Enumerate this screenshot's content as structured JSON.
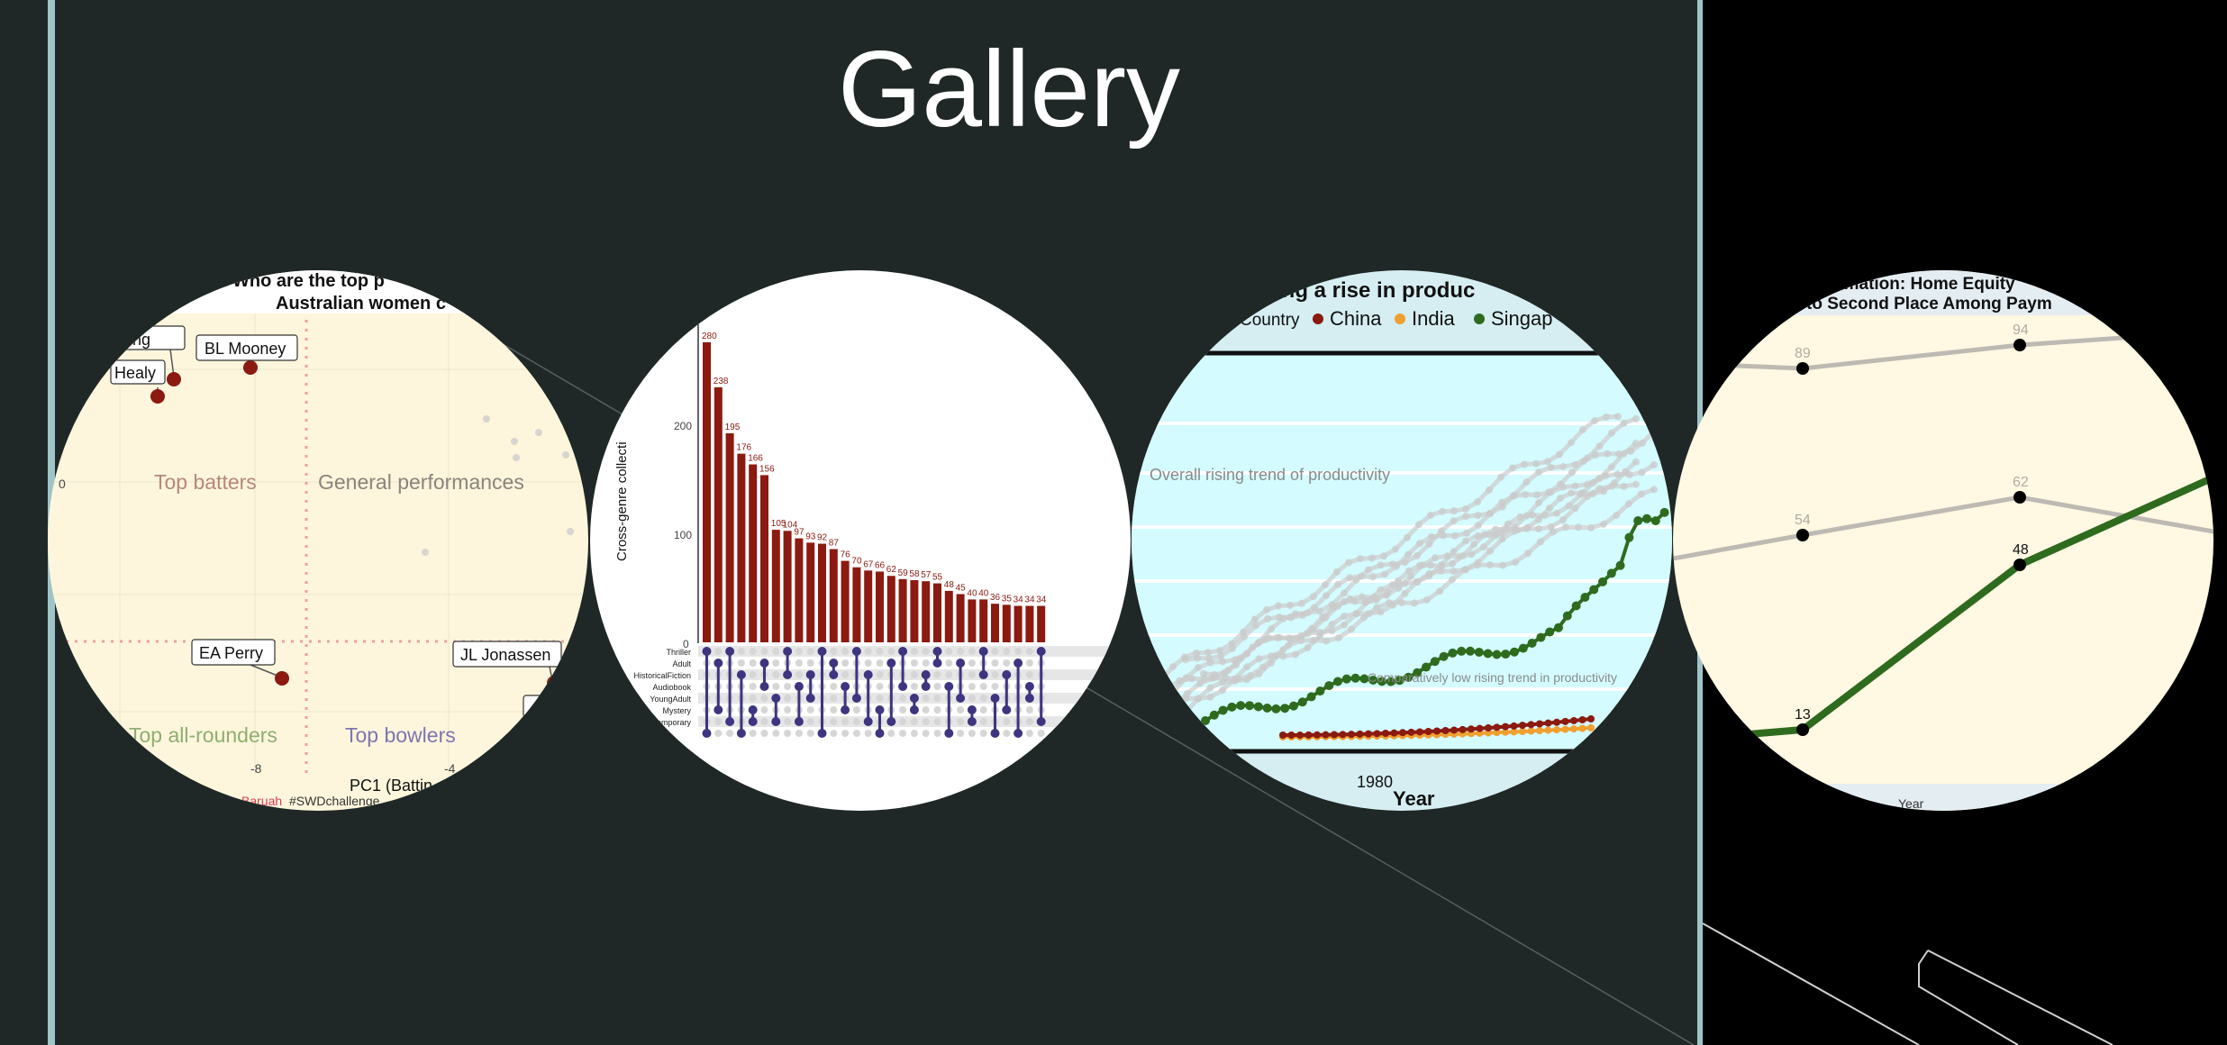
{
  "slide": {
    "title": "Gallery"
  },
  "panel1": {
    "title_line1": "Who are the top p",
    "title_line2": "Australian women c",
    "labels": [
      "nning",
      "BL Mooney",
      "Healy",
      "EA Perry",
      "JL Jonassen"
    ],
    "quadrants": [
      "Top batters",
      "General performances",
      "Top all-rounders",
      "Top bowlers"
    ],
    "xticks": [
      "-8",
      "-4"
    ],
    "yticks": [
      "0"
    ],
    "xlabel": "PC1 (Battin",
    "credit_name": "Baruah",
    "credit_tag": "#SWDchallenge"
  },
  "panel2": {
    "ylabel": "Cross-genre collecti",
    "yticks": [
      "0",
      "100",
      "200"
    ],
    "genres": [
      "Thriller",
      "Adult",
      "HistoricalFiction",
      "Audiobook",
      "YoungAdult",
      "Mystery",
      "Contemporary"
    ],
    "bar_color": "#8b1a10",
    "dot_color": "#3d3580"
  },
  "panel3": {
    "title": "ing a rise in produc",
    "legend_label": "Country",
    "legend": [
      {
        "name": "China",
        "color": "#8b1a10"
      },
      {
        "name": "India",
        "color": "#f0a030"
      },
      {
        "name": "Singap",
        "color": "#2e6b1e"
      }
    ],
    "annotation_top": "Overall rising trend of productivity",
    "annotation_bottom": "Comparatively low rising trend in productivity",
    "xtick": "1980",
    "xlabel": "Year"
  },
  "panel4": {
    "title_line1": "omation: Home Equity",
    "title_line2": "to Second Place Among Paym",
    "point_labels": [
      "89",
      "94",
      "54",
      "62",
      "13",
      "48"
    ],
    "xlabel": "Year",
    "line_color": "#2e6b1e"
  },
  "chart_data": [
    {
      "type": "bar",
      "values": [
        280,
        238,
        195,
        176,
        166,
        156,
        105,
        104,
        97,
        93,
        92,
        87,
        76,
        70,
        67,
        66,
        62,
        59,
        58,
        57,
        55,
        48,
        45,
        40,
        40,
        36,
        35,
        34,
        34,
        34
      ],
      "ylim": [
        0,
        290
      ],
      "ylabel": "Cross-genre collecti"
    },
    {
      "type": "line",
      "title": "ing a rise in produc",
      "xlabel": "Year",
      "series": [
        {
          "name": "China"
        },
        {
          "name": "India"
        },
        {
          "name": "Singap"
        }
      ]
    }
  ]
}
